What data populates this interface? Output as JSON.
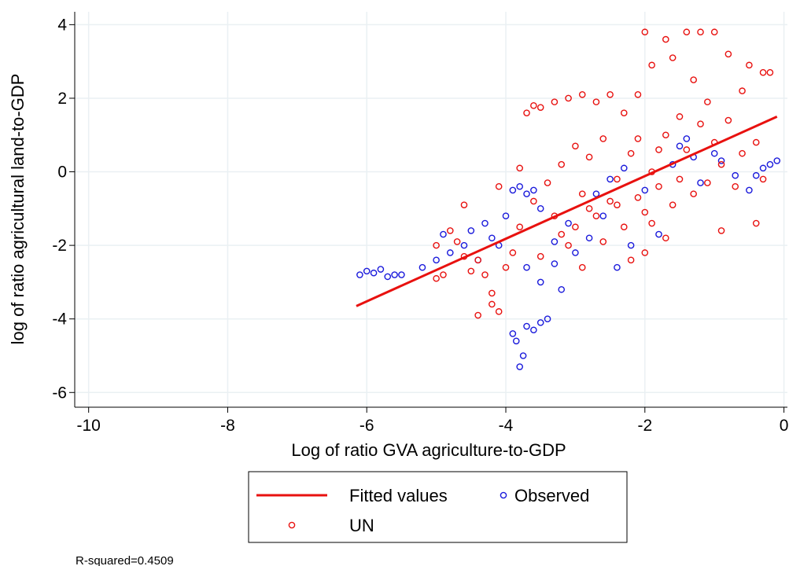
{
  "chart_data": {
    "type": "scatter",
    "xlabel": "Log of ratio GVA agriculture-to-GDP",
    "ylabel": "log of ratio agricultural land-to-GDP",
    "note": "R-squared=0.4509",
    "xlim": [
      -10.2,
      0.05
    ],
    "ylim": [
      -6.4,
      4.35
    ],
    "xticks": [
      -10,
      -8,
      -6,
      -4,
      -2,
      0
    ],
    "yticks": [
      -6,
      -4,
      -2,
      0,
      2,
      4
    ],
    "grid": true,
    "legend": "bottom",
    "series": [
      {
        "name": "Fitted values",
        "type": "line",
        "color": "#e8110f",
        "x": [
          -6.15,
          -0.1
        ],
        "values": [
          -3.65,
          1.5
        ]
      },
      {
        "name": "Observed",
        "type": "scatter",
        "color": "#1a1adb",
        "x": [
          -6.1,
          -6.0,
          -5.9,
          -5.8,
          -5.7,
          -5.6,
          -5.5,
          -5.2,
          -5.0,
          -4.9,
          -4.8,
          -4.6,
          -4.5,
          -4.3,
          -4.2,
          -4.0,
          -3.9,
          -3.8,
          -3.7,
          -3.6,
          -3.5,
          -3.9,
          -3.85,
          -3.8,
          -3.75,
          -3.7,
          -3.6,
          -3.5,
          -3.4,
          -3.7,
          -3.5,
          -3.3,
          -3.2,
          -3.0,
          -2.8,
          -2.6,
          -2.4,
          -2.2,
          -2.0,
          -1.8,
          -1.6,
          -1.5,
          -1.4,
          -1.3,
          -1.2,
          -1.0,
          -0.9,
          -0.7,
          -0.5,
          -0.4,
          -0.3,
          -0.2,
          -0.1,
          -2.7,
          -2.5,
          -2.3,
          -3.1,
          -4.4,
          -4.1,
          -3.3
        ],
        "values": [
          -2.8,
          -2.7,
          -2.75,
          -2.65,
          -2.85,
          -2.8,
          -2.8,
          -2.6,
          -2.4,
          -1.7,
          -2.2,
          -2.0,
          -1.6,
          -1.4,
          -1.8,
          -1.2,
          -0.5,
          -0.4,
          -0.6,
          -0.5,
          -1.0,
          -4.4,
          -4.6,
          -5.3,
          -5.0,
          -4.2,
          -4.3,
          -4.1,
          -4.0,
          -2.6,
          -3.0,
          -2.5,
          -3.2,
          -2.2,
          -1.8,
          -1.2,
          -2.6,
          -2.0,
          -0.5,
          -1.7,
          0.2,
          0.7,
          0.9,
          0.4,
          -0.3,
          0.5,
          0.3,
          -0.1,
          -0.5,
          -0.1,
          0.1,
          0.2,
          0.3,
          -0.6,
          -0.2,
          0.1,
          -1.4,
          -2.4,
          -2.0,
          -1.9
        ]
      },
      {
        "name": "UN",
        "type": "scatter",
        "color": "#e8110f",
        "x": [
          -4.9,
          -5.0,
          -4.7,
          -4.5,
          -4.4,
          -4.3,
          -4.2,
          -4.1,
          -4.4,
          -4.2,
          -4.0,
          -3.9,
          -3.8,
          -3.7,
          -3.6,
          -3.5,
          -3.3,
          -3.1,
          -2.9,
          -2.7,
          -2.5,
          -2.3,
          -2.1,
          -2.0,
          -1.9,
          -1.7,
          -1.6,
          -1.4,
          -1.2,
          -1.0,
          -0.8,
          -0.5,
          -0.3,
          -0.2,
          -1.3,
          -1.5,
          -3.6,
          -3.4,
          -3.2,
          -3.0,
          -2.9,
          -2.8,
          -2.7,
          -2.6,
          -2.5,
          -2.4,
          -2.3,
          -2.2,
          -2.1,
          -2.0,
          -1.9,
          -1.8,
          -1.7,
          -1.6,
          -1.5,
          -1.4,
          -1.3,
          -1.2,
          -1.1,
          -1.0,
          -0.9,
          -0.8,
          -0.7,
          -0.6,
          -0.4,
          -0.3,
          -0.9,
          -0.4,
          -2.0,
          -1.7,
          -2.2,
          -3.1,
          -3.3,
          -3.5,
          -2.9,
          -4.8,
          -4.6,
          -3.2,
          -2.6,
          -2.4,
          -1.9,
          -2.8,
          -3.0,
          -1.1,
          -0.6,
          -1.8,
          -2.1,
          -3.8,
          -4.1,
          -4.6,
          -5.0
        ],
        "values": [
          -2.8,
          -2.0,
          -1.9,
          -2.7,
          -2.4,
          -2.8,
          -3.6,
          -3.8,
          -3.9,
          -3.3,
          -2.6,
          -2.2,
          -1.5,
          1.6,
          1.8,
          1.75,
          1.9,
          2.0,
          2.1,
          1.9,
          2.1,
          1.6,
          2.1,
          3.8,
          2.9,
          3.6,
          3.1,
          3.8,
          3.8,
          3.8,
          3.2,
          2.9,
          2.7,
          2.7,
          2.5,
          1.5,
          -0.8,
          -0.3,
          0.2,
          0.7,
          -0.6,
          0.4,
          -1.2,
          0.9,
          -0.8,
          -0.2,
          -1.5,
          0.5,
          -0.7,
          -1.1,
          0.0,
          -0.4,
          1.0,
          -0.9,
          -0.2,
          0.6,
          -0.6,
          1.3,
          -0.3,
          0.8,
          0.2,
          1.4,
          -0.4,
          0.5,
          0.8,
          -0.2,
          -1.6,
          -1.4,
          -2.2,
          -1.8,
          -2.4,
          -2.0,
          -1.2,
          -2.3,
          -2.6,
          -1.6,
          -2.3,
          -1.7,
          -1.9,
          -0.9,
          -1.4,
          -1.0,
          -1.5,
          1.9,
          2.2,
          0.6,
          0.9,
          0.1,
          -0.4,
          -0.9,
          -2.9
        ]
      }
    ]
  }
}
